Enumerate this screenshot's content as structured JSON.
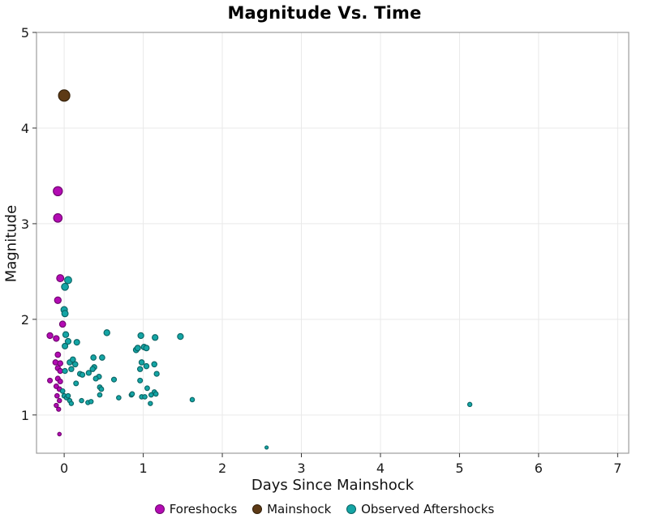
{
  "chart_data": {
    "type": "scatter",
    "title": "Magnitude Vs. Time",
    "xlabel": "Days Since Mainshock",
    "ylabel": "Magnitude",
    "xlim": [
      -0.35,
      7.14
    ],
    "ylim": [
      0.6,
      5.0
    ],
    "xticks": [
      0,
      1,
      2,
      3,
      4,
      5,
      6,
      7
    ],
    "yticks": [
      1,
      2,
      3,
      4,
      5
    ],
    "grid": true,
    "legend_position": "bottom-center",
    "marker_size_by": "magnitude",
    "colors": {
      "grid": "#e9e9e9",
      "frame": "#9c9c9c",
      "tick": "#333333"
    },
    "series": [
      {
        "name": "Foreshocks",
        "color": "#b30bb3",
        "stroke": "#6d066d",
        "points": [
          [
            -0.08,
            3.34
          ],
          [
            -0.08,
            3.06
          ],
          [
            -0.05,
            2.43
          ],
          [
            -0.08,
            2.2
          ],
          [
            -0.02,
            1.95
          ],
          [
            -0.18,
            1.83
          ],
          [
            -0.1,
            1.8
          ],
          [
            -0.08,
            1.63
          ],
          [
            -0.11,
            1.55
          ],
          [
            -0.05,
            1.54
          ],
          [
            -0.08,
            1.49
          ],
          [
            -0.05,
            1.46
          ],
          [
            -0.18,
            1.36
          ],
          [
            -0.08,
            1.38
          ],
          [
            -0.05,
            1.35
          ],
          [
            -0.1,
            1.3
          ],
          [
            -0.06,
            1.27
          ],
          [
            -0.09,
            1.2
          ],
          [
            -0.06,
            1.15
          ],
          [
            -0.1,
            1.1
          ],
          [
            -0.07,
            1.06
          ],
          [
            -0.06,
            0.8
          ]
        ]
      },
      {
        "name": "Mainshock",
        "color": "#5d3a16",
        "stroke": "#33200a",
        "points": [
          [
            0.0,
            4.34
          ]
        ]
      },
      {
        "name": "Observed Aftershocks",
        "color": "#14a5a5",
        "stroke": "#0b6363",
        "points": [
          [
            0.05,
            2.41
          ],
          [
            0.01,
            2.34
          ],
          [
            0.0,
            2.1
          ],
          [
            0.01,
            2.06
          ],
          [
            0.02,
            1.84
          ],
          [
            0.05,
            1.77
          ],
          [
            0.01,
            1.72
          ],
          [
            0.16,
            1.76
          ],
          [
            0.54,
            1.86
          ],
          [
            0.97,
            1.83
          ],
          [
            1.15,
            1.81
          ],
          [
            1.47,
            1.82
          ],
          [
            0.91,
            1.68
          ],
          [
            0.93,
            1.7
          ],
          [
            1.01,
            1.71
          ],
          [
            1.04,
            1.7
          ],
          [
            0.07,
            1.55
          ],
          [
            0.11,
            1.58
          ],
          [
            0.14,
            1.53
          ],
          [
            0.01,
            1.46
          ],
          [
            0.09,
            1.48
          ],
          [
            0.2,
            1.43
          ],
          [
            0.23,
            1.42
          ],
          [
            0.31,
            1.44
          ],
          [
            0.37,
            1.6
          ],
          [
            0.48,
            1.6
          ],
          [
            0.38,
            1.5
          ],
          [
            0.36,
            1.48
          ],
          [
            0.98,
            1.55
          ],
          [
            1.14,
            1.53
          ],
          [
            0.96,
            1.48
          ],
          [
            1.04,
            1.51
          ],
          [
            1.17,
            1.43
          ],
          [
            0.44,
            1.4
          ],
          [
            0.4,
            1.38
          ],
          [
            0.15,
            1.33
          ],
          [
            0.63,
            1.37
          ],
          [
            0.96,
            1.36
          ],
          [
            -0.02,
            1.25
          ],
          [
            0.45,
            1.29
          ],
          [
            0.47,
            1.27
          ],
          [
            1.05,
            1.28
          ],
          [
            1.14,
            1.24
          ],
          [
            1.16,
            1.22
          ],
          [
            0.85,
            1.21
          ],
          [
            1.1,
            1.21
          ],
          [
            0.86,
            1.22
          ],
          [
            0.45,
            1.21
          ],
          [
            0.0,
            1.2
          ],
          [
            0.03,
            1.18
          ],
          [
            0.05,
            1.2
          ],
          [
            0.07,
            1.15
          ],
          [
            0.09,
            1.12
          ],
          [
            0.22,
            1.15
          ],
          [
            0.3,
            1.13
          ],
          [
            0.34,
            1.14
          ],
          [
            0.69,
            1.18
          ],
          [
            0.98,
            1.19
          ],
          [
            1.02,
            1.19
          ],
          [
            1.09,
            1.12
          ],
          [
            1.62,
            1.16
          ],
          [
            2.56,
            0.66
          ],
          [
            5.13,
            1.11
          ]
        ]
      }
    ]
  }
}
